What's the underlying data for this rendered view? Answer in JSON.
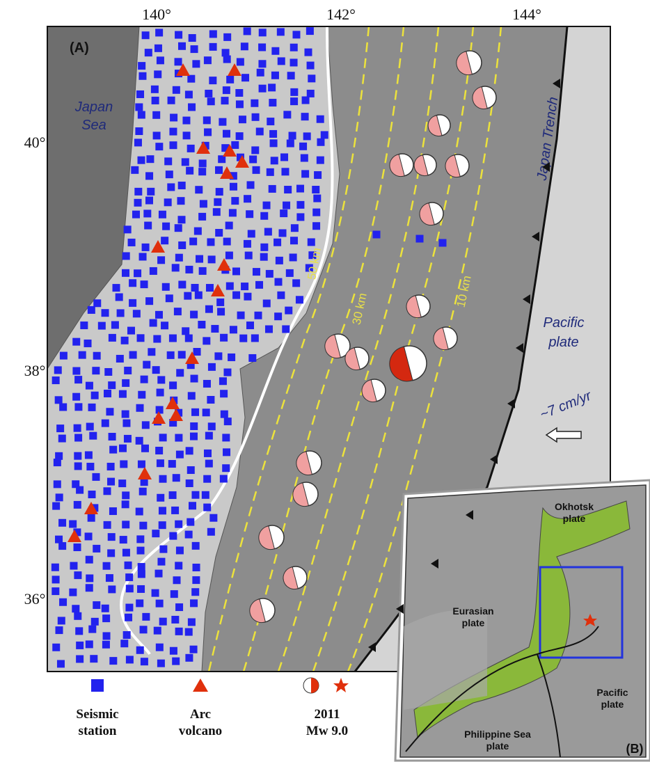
{
  "map_a": {
    "panel_label": "(A)",
    "lon_ticks": [
      "140°",
      "142°",
      "144°"
    ],
    "lat_ticks": [
      "40°",
      "38°",
      "36°"
    ],
    "japan_sea": [
      "Japan",
      "Sea"
    ],
    "japan_trench": "Japan Trench",
    "pacific_plate": [
      "Pacific",
      "plate"
    ],
    "plate_rate": "~7 cm/yr",
    "depth_contours": [
      "50 km",
      "30 km",
      "10 km"
    ]
  },
  "legend": [
    {
      "lines": [
        "Seismic",
        "station"
      ]
    },
    {
      "lines": [
        "Arc",
        "volcano"
      ]
    },
    {
      "lines": [
        "2011",
        "Mw 9.0"
      ]
    }
  ],
  "map_b": {
    "panel_label": "(B)",
    "okhotsk": [
      "Okhotsk",
      "plate"
    ],
    "eurasian": [
      "Eurasian",
      "plate"
    ],
    "pacific": [
      "Pacific",
      "plate"
    ],
    "philippine": [
      "Philippine Sea",
      "plate"
    ]
  }
}
